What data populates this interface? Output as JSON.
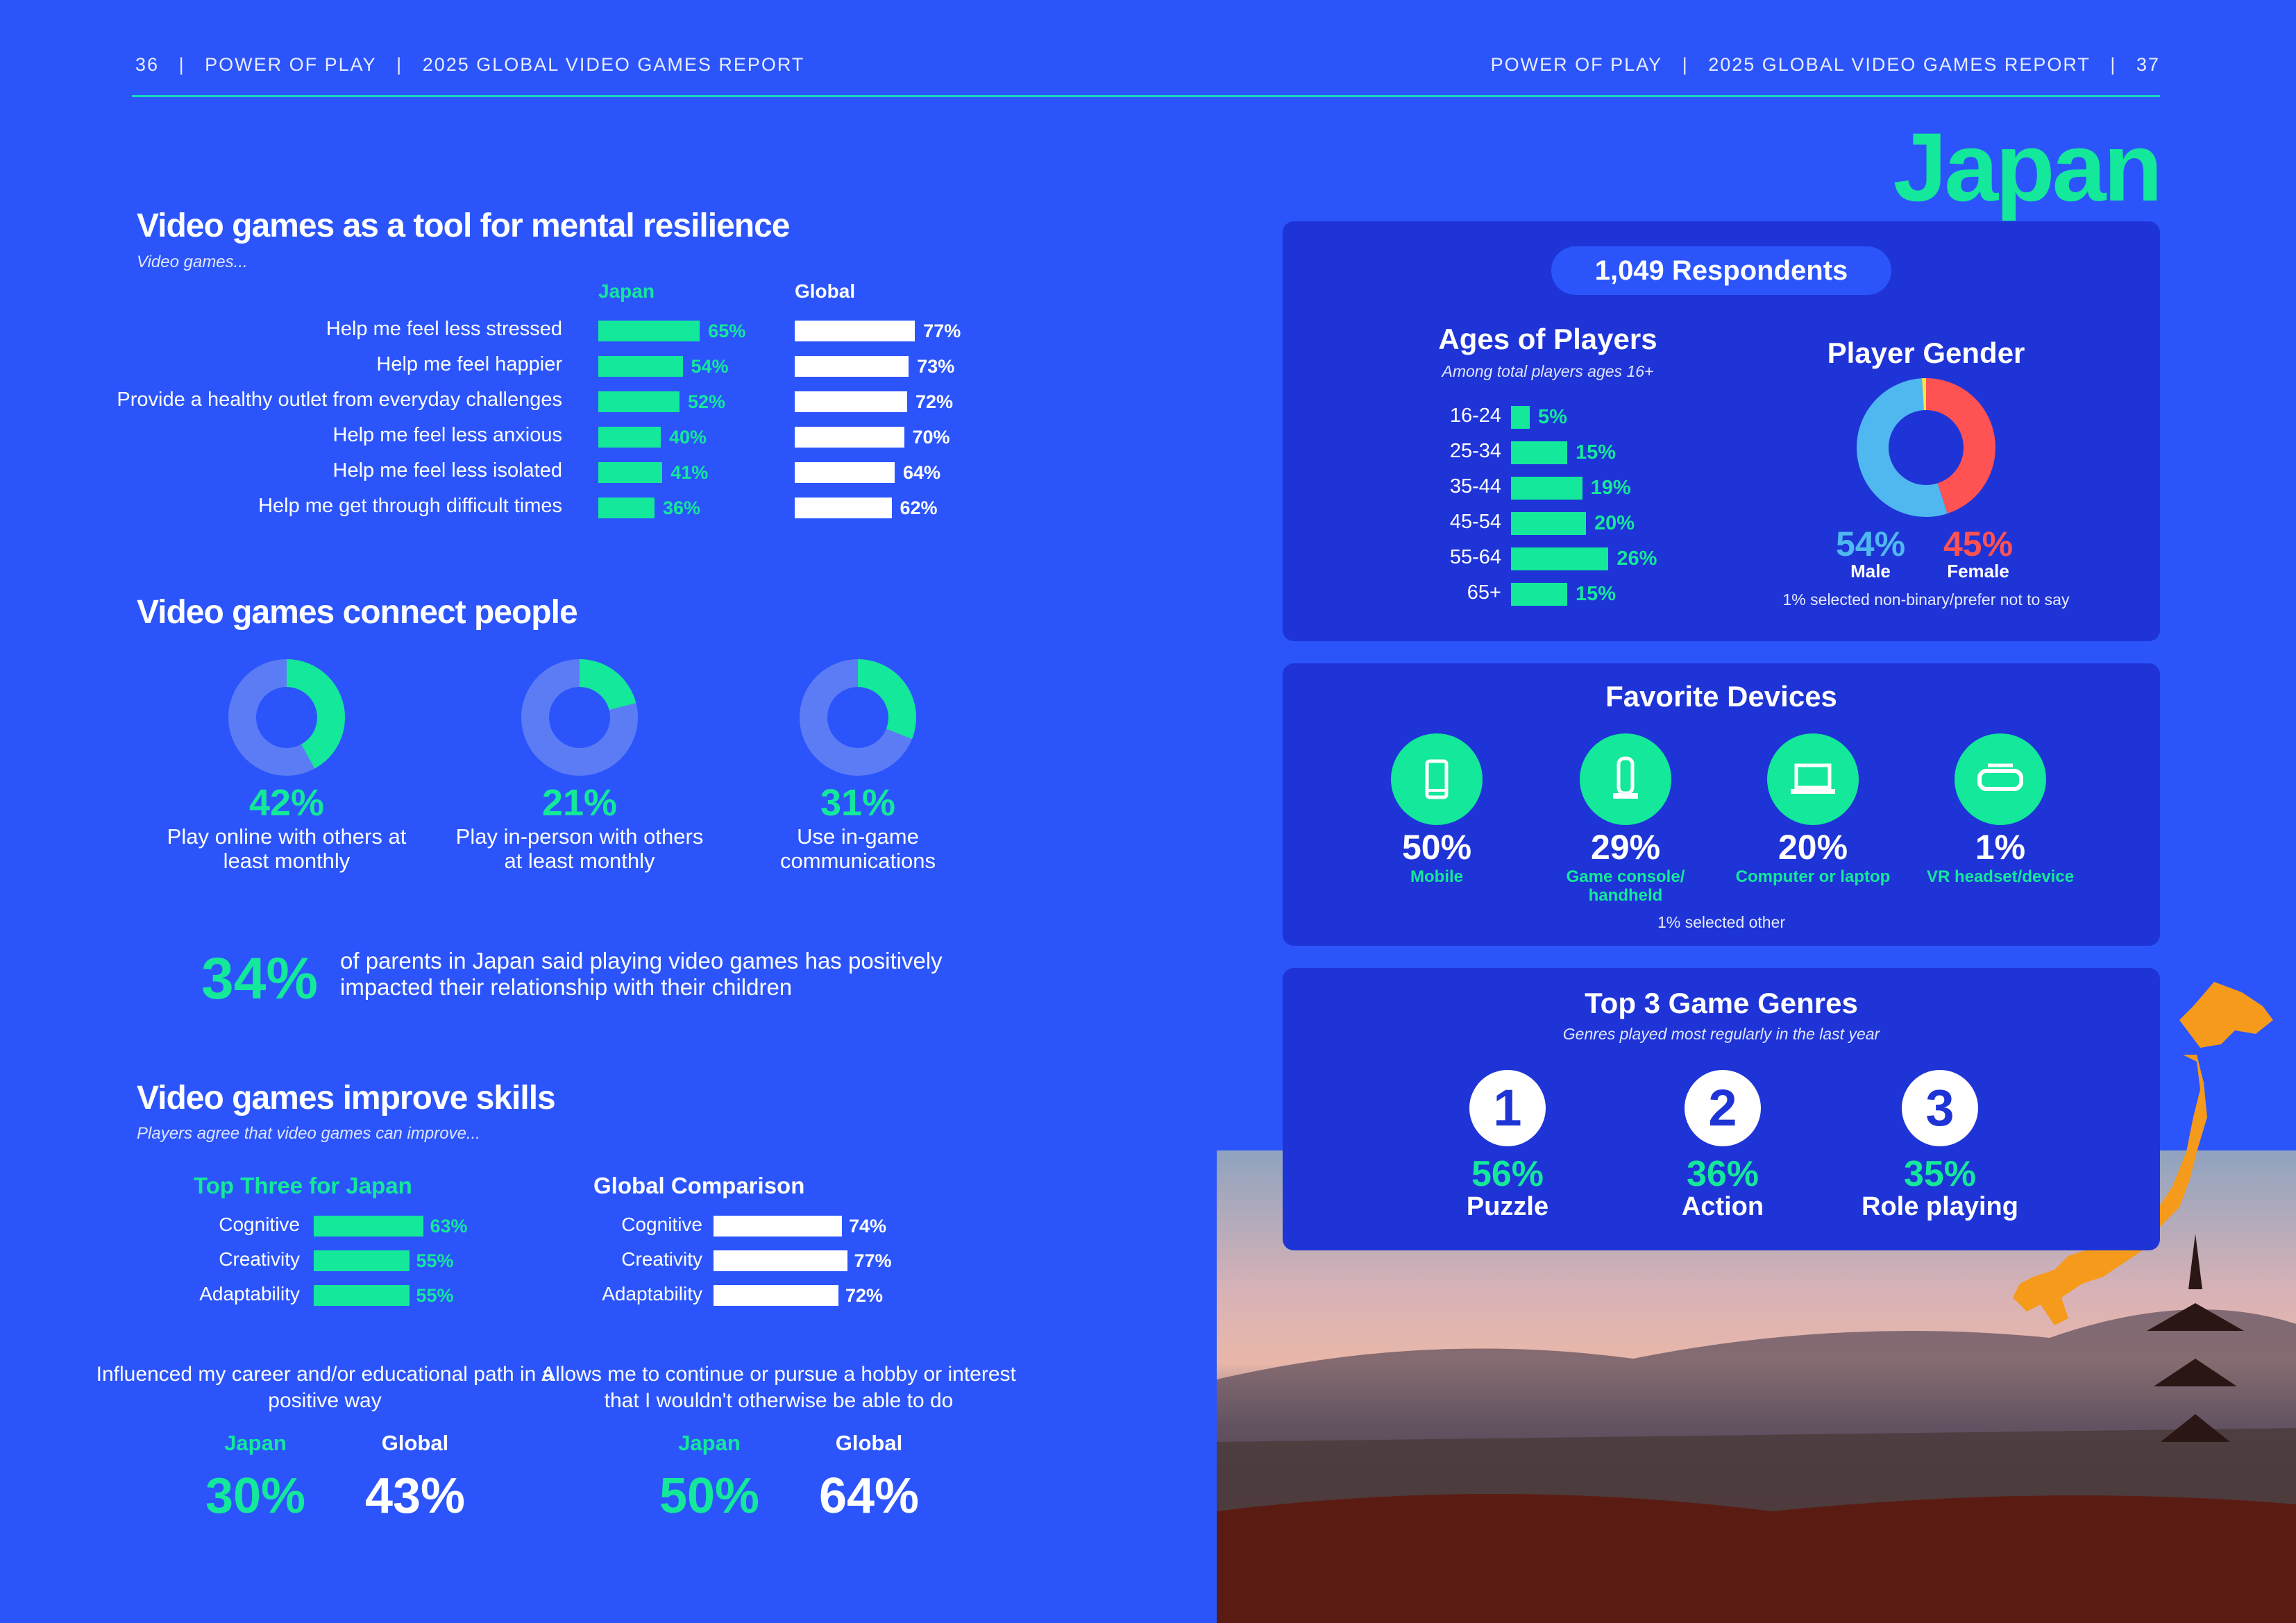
{
  "header": {
    "left_page": "36",
    "left_title": "POWER OF PLAY",
    "left_report": "2025 GLOBAL VIDEO GAMES REPORT",
    "right_title": "POWER OF PLAY",
    "right_report": "2025 GLOBAL VIDEO GAMES REPORT",
    "right_page": "37",
    "sep": "|"
  },
  "country": "Japan",
  "colors": {
    "background": "#2b55fb",
    "panel": "#1e34d6",
    "green": "#14e89a",
    "male": "#4fb8f0",
    "female": "#ff5252",
    "other": "#f4e542",
    "map": "#f59a1b"
  },
  "resilience": {
    "title": "Video games as a tool for mental resilience",
    "subtitle": "Video games...",
    "col_japan": "Japan",
    "col_global": "Global",
    "chart_data": {
      "type": "bar",
      "categories": [
        "Help me feel less stressed",
        "Help me feel happier",
        "Provide a healthy outlet from everyday challenges",
        "Help me feel less anxious",
        "Help me feel less isolated",
        "Help me get through difficult times"
      ],
      "series": [
        {
          "name": "Japan",
          "values": [
            65,
            54,
            52,
            40,
            41,
            36
          ]
        },
        {
          "name": "Global",
          "values": [
            77,
            73,
            72,
            70,
            64,
            62
          ]
        }
      ]
    }
  },
  "connect": {
    "title": "Video games connect people",
    "donuts": [
      {
        "value": 42,
        "pct": "42%",
        "label": "Play online with others at least monthly"
      },
      {
        "value": 21,
        "pct": "21%",
        "label": "Play in-person with others at least monthly"
      },
      {
        "value": 31,
        "pct": "31%",
        "label": "Use in-game communications"
      }
    ],
    "parents_pct": "34%",
    "parents_text": "of parents in Japan said playing video games has positively impacted their relationship with their children"
  },
  "skills": {
    "title": "Video games improve skills",
    "subtitle": "Players agree that video games can improve...",
    "japan_title": "Top Three for Japan",
    "global_title": "Global Comparison",
    "chart_data": {
      "type": "bar",
      "categories": [
        "Cognitive",
        "Creativity",
        "Adaptability"
      ],
      "series": [
        {
          "name": "Top Three for Japan",
          "values": [
            63,
            55,
            55
          ]
        },
        {
          "name": "Global Comparison",
          "values": [
            74,
            77,
            72
          ]
        }
      ]
    },
    "stats": [
      {
        "text": "Influenced my career and/or educational path in a positive way",
        "japan_label": "Japan",
        "global_label": "Global",
        "japan": "30%",
        "global": "43%"
      },
      {
        "text": "Allows me to continue or pursue a hobby or interest that I wouldn't otherwise be able to do",
        "japan_label": "Japan",
        "global_label": "Global",
        "japan": "50%",
        "global": "64%"
      }
    ]
  },
  "respondents": "1,049 Respondents",
  "ages": {
    "title": "Ages of Players",
    "subtitle": "Among total players ages 16+",
    "chart_data": {
      "type": "bar",
      "categories": [
        "16-24",
        "25-34",
        "35-44",
        "45-54",
        "55-64",
        "65+"
      ],
      "values": [
        5,
        15,
        19,
        20,
        26,
        15
      ]
    }
  },
  "gender": {
    "title": "Player Gender",
    "male_pct": "54%",
    "male": "Male",
    "female_pct": "45%",
    "female": "Female",
    "note": "1% selected non-binary/prefer not to say",
    "chart_data": {
      "type": "pie",
      "categories": [
        "Female",
        "Male",
        "Non-binary/prefer not to say"
      ],
      "values": [
        45,
        54,
        1
      ]
    }
  },
  "devices": {
    "title": "Favorite Devices",
    "items": [
      {
        "icon": "mobile-phone-icon",
        "pct": "50%",
        "label": "Mobile"
      },
      {
        "icon": "game-console-icon",
        "pct": "29%",
        "label": "Game console/ handheld"
      },
      {
        "icon": "laptop-icon",
        "pct": "20%",
        "label": "Computer or laptop"
      },
      {
        "icon": "vr-headset-icon",
        "pct": "1%",
        "label": "VR headset/device"
      }
    ],
    "note": "1% selected other"
  },
  "genres": {
    "title": "Top 3 Game Genres",
    "subtitle": "Genres played most regularly in the last year",
    "items": [
      {
        "rank": "1",
        "pct": "56%",
        "label": "Puzzle"
      },
      {
        "rank": "2",
        "pct": "36%",
        "label": "Action"
      },
      {
        "rank": "3",
        "pct": "35%",
        "label": "Role playing"
      }
    ]
  }
}
